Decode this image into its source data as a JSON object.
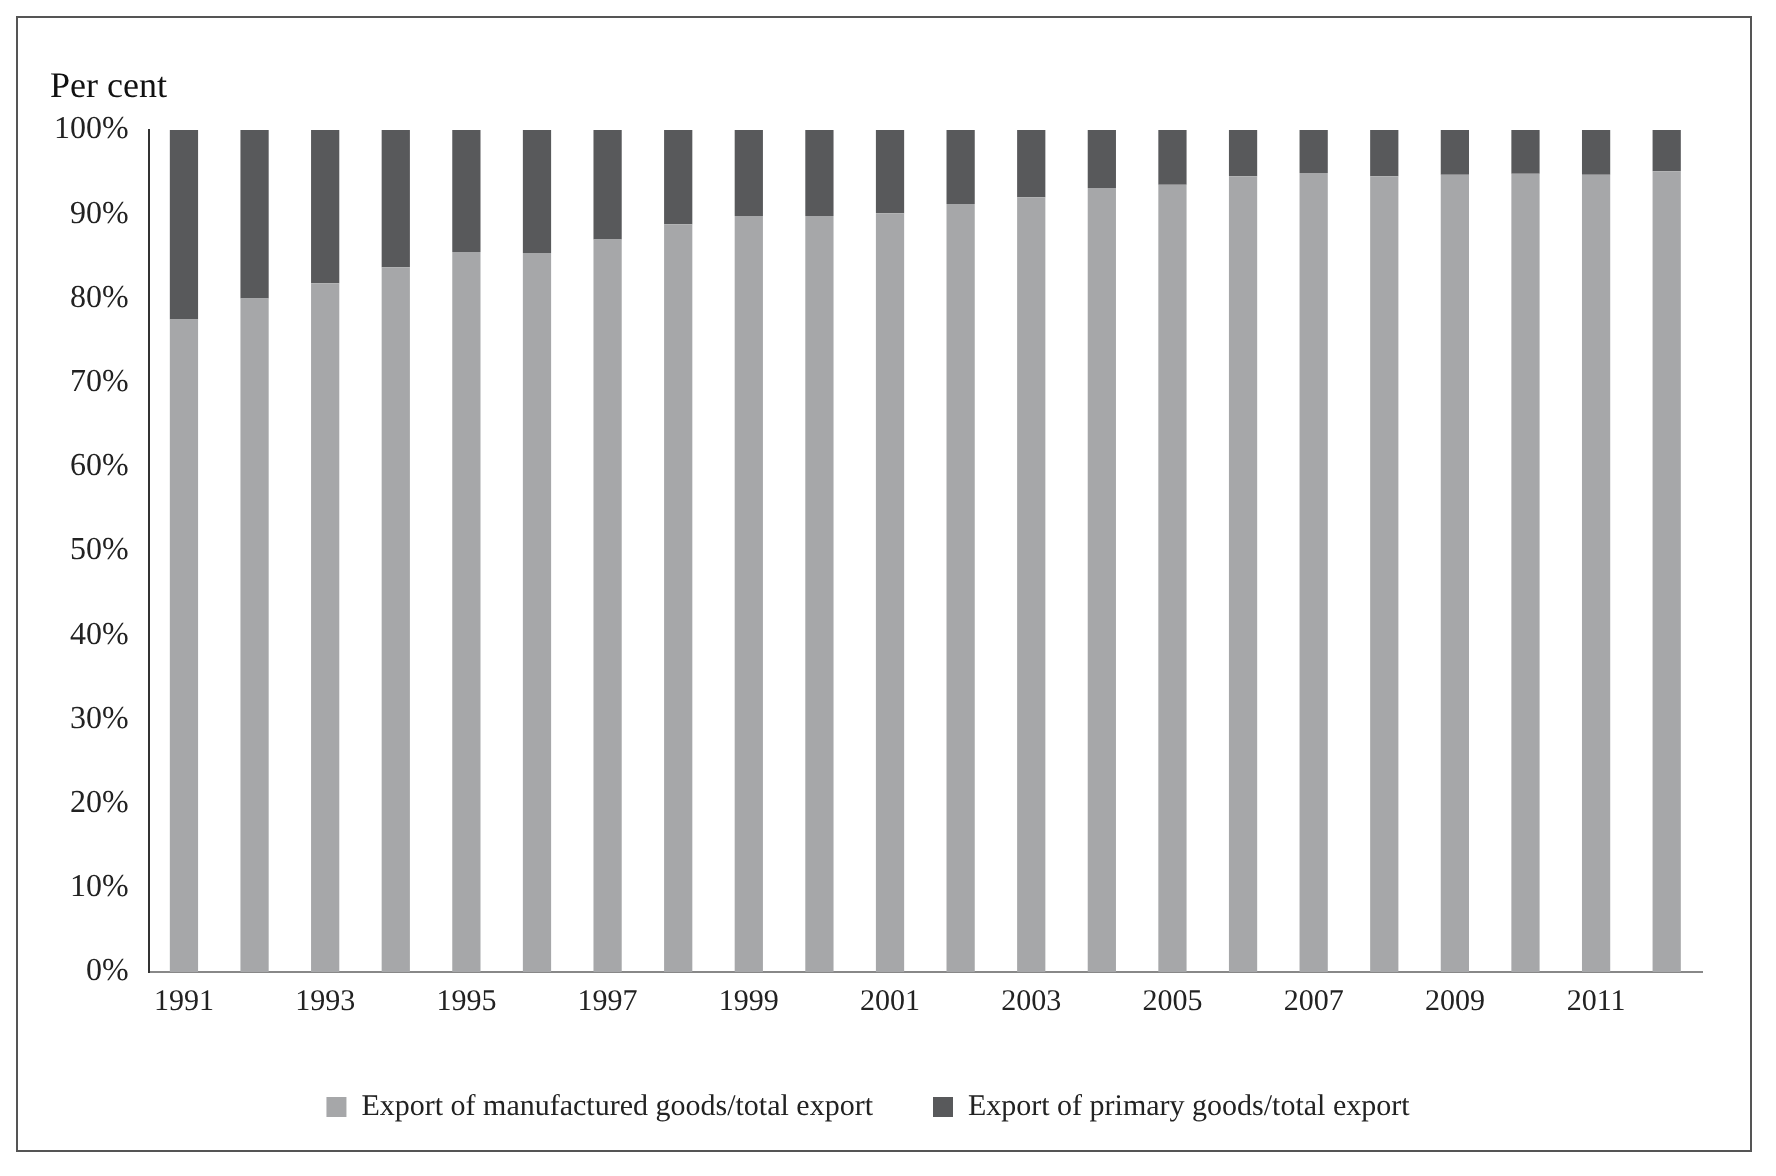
{
  "chart_data": {
    "type": "bar",
    "stacked": true,
    "ylabel": "Per cent",
    "categories": [
      "1991",
      null,
      "1993",
      null,
      "1995",
      null,
      "1997",
      null,
      "1999",
      null,
      "2001",
      null,
      "2003",
      null,
      "2005",
      null,
      "2007",
      null,
      "2009",
      null,
      "2011",
      null
    ],
    "series": [
      {
        "name": "Export of manufactured goods/total export",
        "color": "#a6a7a9",
        "values": [
          77.5,
          80,
          81.8,
          83.7,
          85.5,
          85.4,
          87,
          88.8,
          89.8,
          89.8,
          90.1,
          91.2,
          92,
          93.1,
          93.5,
          94.5,
          94.9,
          94.5,
          94.7,
          94.8,
          94.7,
          95.1
        ]
      },
      {
        "name": "Export of primary goods/total export",
        "color": "#58595b",
        "values": [
          22.5,
          20,
          18.2,
          16.3,
          14.5,
          14.6,
          13,
          11.2,
          10.2,
          10.2,
          9.9,
          8.8,
          8,
          6.9,
          6.5,
          5.5,
          5.1,
          5.5,
          5.3,
          5.2,
          5.3,
          4.9
        ]
      }
    ],
    "ylim": [
      0,
      100
    ],
    "yticks": [
      {
        "value": 0,
        "label": "0%"
      },
      {
        "value": 10,
        "label": "10%"
      },
      {
        "value": 20,
        "label": "20%"
      },
      {
        "value": 30,
        "label": "30%"
      },
      {
        "value": 40,
        "label": "40%"
      },
      {
        "value": 50,
        "label": "50%"
      },
      {
        "value": 60,
        "label": "60%"
      },
      {
        "value": 70,
        "label": "70%"
      },
      {
        "value": 80,
        "label": "80%"
      },
      {
        "value": 90,
        "label": "90%"
      },
      {
        "value": 100,
        "label": "100%"
      }
    ],
    "grid": false,
    "legend": "bottom"
  }
}
